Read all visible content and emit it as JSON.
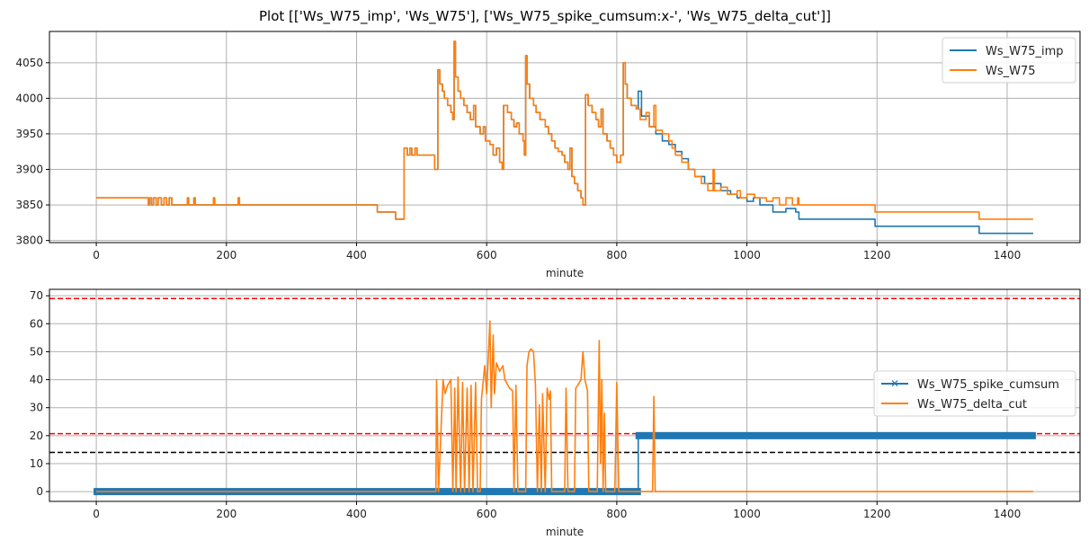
{
  "title": "Plot [['Ws_W75_imp', 'Ws_W75'], ['Ws_W75_spike_cumsum:x-', 'Ws_W75_delta_cut']]",
  "colors": {
    "blue": "#1f77b4",
    "orange": "#ff7f0e",
    "red": "#ff0000",
    "black": "#000000",
    "grid": "#b0b0b0"
  },
  "chart_data": [
    {
      "type": "line",
      "xlabel": "minute",
      "ylabel": "",
      "xlim": [
        -72,
        1512
      ],
      "ylim": [
        3797,
        4094
      ],
      "xticks": [
        0,
        200,
        400,
        600,
        800,
        1000,
        1200,
        1400
      ],
      "yticks": [
        3800,
        3850,
        3900,
        3950,
        4000,
        4050
      ],
      "grid": true,
      "legend_position": "top-right",
      "series": [
        {
          "name": "Ws_W75_imp",
          "color": "#1f77b4",
          "shared_with_next_until": 833,
          "tail": [
            [
              833,
              4010
            ],
            [
              838,
              3975
            ],
            [
              850,
              3960
            ],
            [
              860,
              3950
            ],
            [
              870,
              3940
            ],
            [
              880,
              3935
            ],
            [
              890,
              3925
            ],
            [
              900,
              3915
            ],
            [
              910,
              3900
            ],
            [
              920,
              3890
            ],
            [
              935,
              3880
            ],
            [
              960,
              3870
            ],
            [
              975,
              3865
            ],
            [
              985,
              3860
            ],
            [
              1000,
              3855
            ],
            [
              1010,
              3860
            ],
            [
              1020,
              3850
            ],
            [
              1040,
              3840
            ],
            [
              1060,
              3845
            ],
            [
              1075,
              3840
            ],
            [
              1080,
              3830
            ],
            [
              1197,
              3820
            ],
            [
              1357,
              3810
            ],
            [
              1440,
              3810
            ]
          ]
        },
        {
          "name": "Ws_W75",
          "color": "#ff7f0e",
          "points": [
            [
              0,
              3860
            ],
            [
              80,
              3850
            ],
            [
              82,
              3860
            ],
            [
              85,
              3850
            ],
            [
              88,
              3860
            ],
            [
              92,
              3850
            ],
            [
              95,
              3860
            ],
            [
              100,
              3850
            ],
            [
              104,
              3860
            ],
            [
              108,
              3850
            ],
            [
              112,
              3860
            ],
            [
              116,
              3850
            ],
            [
              140,
              3860
            ],
            [
              142,
              3850
            ],
            [
              150,
              3860
            ],
            [
              152,
              3850
            ],
            [
              180,
              3860
            ],
            [
              182,
              3850
            ],
            [
              218,
              3860
            ],
            [
              220,
              3850
            ],
            [
              432,
              3840
            ],
            [
              460,
              3830
            ],
            [
              473,
              3930
            ],
            [
              478,
              3920
            ],
            [
              482,
              3930
            ],
            [
              485,
              3920
            ],
            [
              490,
              3930
            ],
            [
              493,
              3920
            ],
            [
              520,
              3900
            ],
            [
              525,
              4040
            ],
            [
              528,
              4020
            ],
            [
              532,
              4010
            ],
            [
              535,
              4000
            ],
            [
              540,
              3990
            ],
            [
              545,
              3980
            ],
            [
              548,
              3970
            ],
            [
              550,
              4080
            ],
            [
              552,
              4030
            ],
            [
              556,
              4010
            ],
            [
              560,
              4000
            ],
            [
              565,
              3990
            ],
            [
              570,
              3980
            ],
            [
              575,
              3970
            ],
            [
              580,
              3990
            ],
            [
              583,
              3960
            ],
            [
              590,
              3950
            ],
            [
              595,
              3960
            ],
            [
              598,
              3940
            ],
            [
              605,
              3935
            ],
            [
              610,
              3920
            ],
            [
              615,
              3930
            ],
            [
              620,
              3910
            ],
            [
              624,
              3900
            ],
            [
              626,
              3990
            ],
            [
              632,
              3980
            ],
            [
              638,
              3970
            ],
            [
              642,
              3960
            ],
            [
              646,
              3965
            ],
            [
              650,
              3950
            ],
            [
              656,
              3940
            ],
            [
              658,
              3920
            ],
            [
              660,
              4060
            ],
            [
              662,
              4020
            ],
            [
              666,
              4000
            ],
            [
              672,
              3990
            ],
            [
              676,
              3980
            ],
            [
              682,
              3970
            ],
            [
              690,
              3960
            ],
            [
              695,
              3950
            ],
            [
              700,
              3940
            ],
            [
              705,
              3930
            ],
            [
              710,
              3925
            ],
            [
              716,
              3920
            ],
            [
              720,
              3910
            ],
            [
              725,
              3900
            ],
            [
              728,
              3930
            ],
            [
              731,
              3890
            ],
            [
              735,
              3880
            ],
            [
              740,
              3870
            ],
            [
              745,
              3860
            ],
            [
              748,
              3850
            ],
            [
              752,
              4005
            ],
            [
              756,
              3990
            ],
            [
              762,
              3980
            ],
            [
              768,
              3970
            ],
            [
              772,
              3960
            ],
            [
              776,
              3985
            ],
            [
              779,
              3950
            ],
            [
              785,
              3940
            ],
            [
              790,
              3930
            ],
            [
              795,
              3920
            ],
            [
              800,
              3910
            ],
            [
              806,
              3920
            ],
            [
              810,
              4050
            ],
            [
              813,
              4020
            ],
            [
              816,
              4000
            ],
            [
              822,
              3990
            ],
            [
              830,
              3985
            ],
            [
              836,
              3970
            ],
            [
              845,
              3980
            ],
            [
              850,
              3960
            ],
            [
              857,
              3990
            ],
            [
              860,
              3955
            ],
            [
              870,
              3950
            ],
            [
              880,
              3940
            ],
            [
              885,
              3930
            ],
            [
              890,
              3920
            ],
            [
              900,
              3910
            ],
            [
              910,
              3900
            ],
            [
              920,
              3890
            ],
            [
              930,
              3880
            ],
            [
              940,
              3870
            ],
            [
              948,
              3900
            ],
            [
              950,
              3870
            ],
            [
              960,
              3875
            ],
            [
              970,
              3865
            ],
            [
              985,
              3870
            ],
            [
              990,
              3860
            ],
            [
              1000,
              3865
            ],
            [
              1012,
              3860
            ],
            [
              1030,
              3855
            ],
            [
              1040,
              3860
            ],
            [
              1050,
              3850
            ],
            [
              1060,
              3860
            ],
            [
              1070,
              3850
            ],
            [
              1078,
              3860
            ],
            [
              1080,
              3850
            ],
            [
              1197,
              3840
            ],
            [
              1357,
              3830
            ],
            [
              1440,
              3830
            ]
          ]
        }
      ]
    },
    {
      "type": "line",
      "xlabel": "minute",
      "ylabel": "",
      "xlim": [
        -72,
        1512
      ],
      "ylim": [
        -3.5,
        72.3
      ],
      "xticks": [
        0,
        200,
        400,
        600,
        800,
        1000,
        1200,
        1400
      ],
      "yticks": [
        0,
        10,
        20,
        30,
        40,
        50,
        60,
        70
      ],
      "grid": true,
      "legend_position": "center-right",
      "hlines": [
        {
          "y": 69,
          "color": "#ff0000"
        },
        {
          "y": 20.7,
          "color": "#ff0000"
        },
        {
          "y": 14,
          "color": "#000000"
        }
      ],
      "series": [
        {
          "name": "Ws_W75_spike_cumsum",
          "color": "#1f77b4",
          "marker": "x",
          "points": [
            [
              0,
              0
            ],
            [
              833,
              0
            ],
            [
              833,
              20
            ],
            [
              1440,
              20
            ]
          ]
        },
        {
          "name": "Ws_W75_delta_cut",
          "color": "#ff7f0e",
          "points": [
            [
              0,
              0
            ],
            [
              522,
              0
            ],
            [
              523,
              40
            ],
            [
              526,
              0
            ],
            [
              533,
              40
            ],
            [
              536,
              35
            ],
            [
              540,
              38
            ],
            [
              545,
              40
            ],
            [
              548,
              0
            ],
            [
              551,
              37
            ],
            [
              553,
              0
            ],
            [
              556,
              41
            ],
            [
              560,
              0
            ],
            [
              563,
              39
            ],
            [
              566,
              0
            ],
            [
              570,
              37
            ],
            [
              573,
              0
            ],
            [
              576,
              38
            ],
            [
              579,
              0
            ],
            [
              583,
              39
            ],
            [
              586,
              0
            ],
            [
              590,
              0
            ],
            [
              592,
              33
            ],
            [
              597,
              45
            ],
            [
              600,
              35
            ],
            [
              605,
              61
            ],
            [
              607,
              30
            ],
            [
              610,
              56
            ],
            [
              612,
              35
            ],
            [
              615,
              46
            ],
            [
              620,
              43
            ],
            [
              625,
              45
            ],
            [
              628,
              40
            ],
            [
              635,
              37
            ],
            [
              640,
              36
            ],
            [
              642,
              0
            ],
            [
              645,
              38
            ],
            [
              648,
              0
            ],
            [
              660,
              0
            ],
            [
              662,
              45
            ],
            [
              665,
              50
            ],
            [
              668,
              51
            ],
            [
              672,
              50
            ],
            [
              675,
              38
            ],
            [
              678,
              0
            ],
            [
              681,
              31
            ],
            [
              684,
              0
            ],
            [
              686,
              35
            ],
            [
              690,
              0
            ],
            [
              693,
              37
            ],
            [
              696,
              33
            ],
            [
              698,
              36
            ],
            [
              700,
              0
            ],
            [
              720,
              0
            ],
            [
              722,
              37
            ],
            [
              725,
              0
            ],
            [
              735,
              0
            ],
            [
              737,
              37
            ],
            [
              740,
              38
            ],
            [
              745,
              40
            ],
            [
              748,
              50
            ],
            [
              751,
              40
            ],
            [
              755,
              36
            ],
            [
              757,
              0
            ],
            [
              770,
              0
            ],
            [
              773,
              54
            ],
            [
              775,
              10
            ],
            [
              777,
              40
            ],
            [
              779,
              0
            ],
            [
              781,
              28
            ],
            [
              783,
              0
            ],
            [
              797,
              0
            ],
            [
              800,
              39
            ],
            [
              803,
              0
            ],
            [
              855,
              0
            ],
            [
              857,
              34
            ],
            [
              859,
              0
            ],
            [
              1440,
              0
            ]
          ]
        }
      ]
    }
  ]
}
